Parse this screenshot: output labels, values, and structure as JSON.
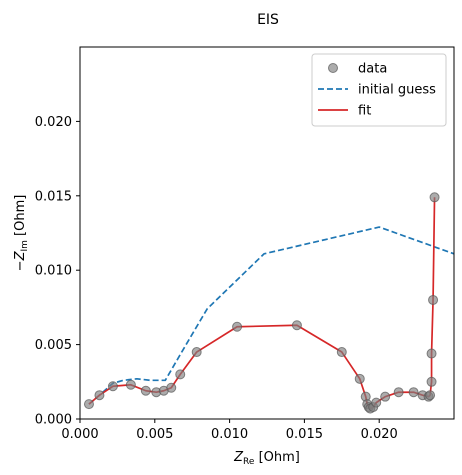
{
  "chart_data": {
    "type": "scatter",
    "title": "EIS",
    "xlabel": {
      "main": "Z",
      "sub": "Re",
      "unit": " [Ohm]"
    },
    "ylabel": {
      "prefix": "−Z",
      "sub": "Im",
      "unit": " [Ohm]"
    },
    "xlim": [
      0,
      0.025
    ],
    "ylim": [
      0,
      0.025
    ],
    "xticks": [
      0.0,
      0.005,
      0.01,
      0.015,
      0.02
    ],
    "xtick_labels": [
      "0.000",
      "0.005",
      "0.010",
      "0.015",
      "0.020"
    ],
    "yticks": [
      0.0,
      0.005,
      0.01,
      0.015,
      0.02
    ],
    "ytick_labels": [
      "0.000",
      "0.005",
      "0.010",
      "0.015",
      "0.020"
    ],
    "grid": false,
    "legend_position": "top-right",
    "series": [
      {
        "name": "data",
        "kind": "markers",
        "color": "#808080",
        "x": [
          0.0006,
          0.0013,
          0.0022,
          0.0034,
          0.0044,
          0.0051,
          0.0056,
          0.0061,
          0.0067,
          0.0078,
          0.0105,
          0.0145,
          0.0175,
          0.0187,
          0.0191,
          0.0192,
          0.0193,
          0.0194,
          0.0196,
          0.0198,
          0.0204,
          0.0213,
          0.0223,
          0.0229,
          0.0233,
          0.0234,
          0.0235,
          0.0235,
          0.0236,
          0.0237
        ],
        "y": [
          0.001,
          0.0016,
          0.0022,
          0.0023,
          0.0019,
          0.0018,
          0.0019,
          0.0021,
          0.003,
          0.0045,
          0.0062,
          0.0063,
          0.0045,
          0.0027,
          0.0015,
          0.001,
          0.0008,
          0.0007,
          0.0008,
          0.0011,
          0.0015,
          0.0018,
          0.0018,
          0.0016,
          0.0015,
          0.0016,
          0.0025,
          0.0044,
          0.008,
          0.0149
        ]
      },
      {
        "name": "initial guess",
        "kind": "dashed-line",
        "color": "#1f77b4",
        "x": [
          0.0006,
          0.0013,
          0.0022,
          0.0029,
          0.0038,
          0.0047,
          0.0057,
          0.0068,
          0.0085,
          0.0123,
          0.02,
          0.025
        ],
        "y": [
          0.001,
          0.0016,
          0.0024,
          0.0026,
          0.0027,
          0.0026,
          0.0026,
          0.0045,
          0.0074,
          0.0111,
          0.0129,
          0.0111
        ]
      },
      {
        "name": "fit",
        "kind": "line",
        "color": "#d62728",
        "x": [
          0.0006,
          0.0013,
          0.0022,
          0.0034,
          0.0044,
          0.0051,
          0.0056,
          0.0061,
          0.0067,
          0.0078,
          0.0105,
          0.0145,
          0.0175,
          0.0187,
          0.0191,
          0.0192,
          0.0193,
          0.0194,
          0.0196,
          0.0198,
          0.0204,
          0.0213,
          0.0223,
          0.0229,
          0.0233,
          0.0234,
          0.0235,
          0.0235,
          0.0236,
          0.0237
        ],
        "y": [
          0.001,
          0.0016,
          0.0022,
          0.0023,
          0.0019,
          0.0018,
          0.0019,
          0.0021,
          0.003,
          0.0045,
          0.0062,
          0.0063,
          0.0045,
          0.0027,
          0.0015,
          0.001,
          0.0008,
          0.0007,
          0.0008,
          0.0011,
          0.0015,
          0.0018,
          0.0018,
          0.0016,
          0.0015,
          0.0016,
          0.0025,
          0.0044,
          0.008,
          0.0149
        ]
      }
    ]
  }
}
